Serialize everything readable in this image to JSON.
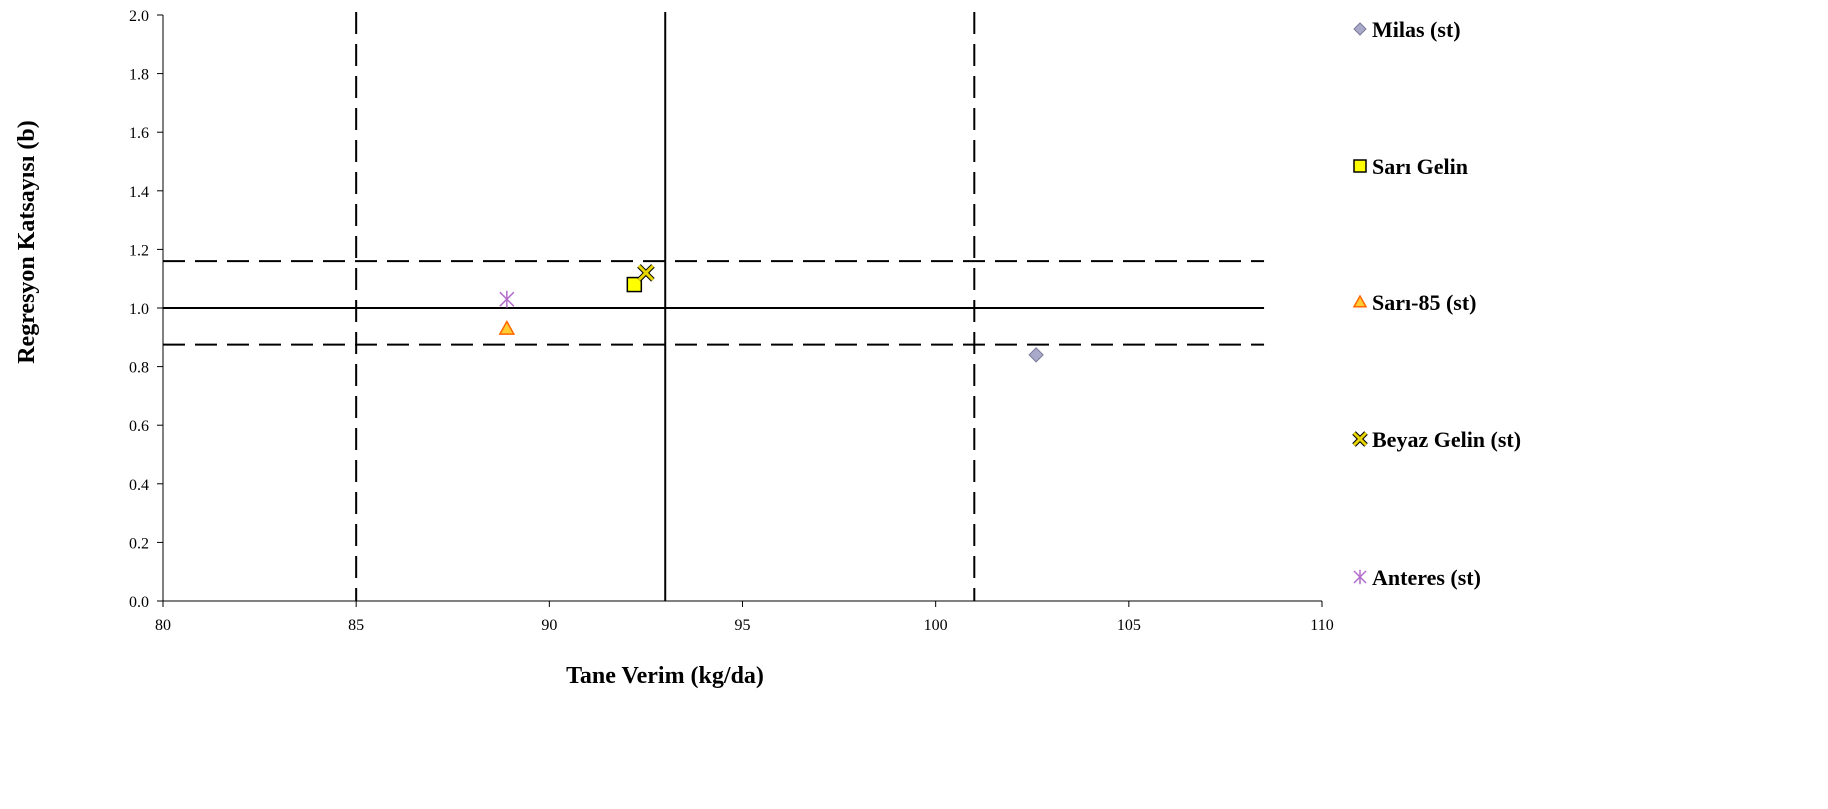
{
  "chart_data": {
    "type": "scatter",
    "title": "",
    "xlabel": "Tane Verim (kg/da)",
    "ylabel": "Regresyon Katsayısı (b)",
    "xlim": [
      80,
      110
    ],
    "ylim": [
      0,
      2.0
    ],
    "x_ticks": [
      "80",
      "85",
      "90",
      "95",
      "100",
      "105",
      "110"
    ],
    "y_ticks": [
      "0.0",
      "0.2",
      "0.4",
      "0.6",
      "0.8",
      "1.0",
      "1.2",
      "1.4",
      "1.6",
      "1.8",
      "2.0"
    ],
    "grid": false,
    "legend_position": "right",
    "series": [
      {
        "name": "Milas (st)",
        "marker": "diamond",
        "color": "#a9a9c9",
        "x": 102.6,
        "y": 0.84
      },
      {
        "name": "Sarı Gelin",
        "marker": "square",
        "color": "#ffff00",
        "x": 92.2,
        "y": 1.08
      },
      {
        "name": "Sarı-85 (st)",
        "marker": "triangle",
        "color": "#ffcc33",
        "x": 88.9,
        "y": 0.93
      },
      {
        "name": "Beyaz Gelin (st)",
        "marker": "x",
        "color": "#e6d400",
        "x": 92.5,
        "y": 1.12
      },
      {
        "name": "Anteres (st)",
        "marker": "asterisk",
        "color": "#b36bc9",
        "x": 88.9,
        "y": 1.03
      }
    ],
    "reference_lines": {
      "mean_x": 93.0,
      "mean_y": 1.0,
      "dashed_x": [
        85.0,
        101.0
      ],
      "dashed_y": [
        0.875,
        1.16
      ]
    }
  }
}
